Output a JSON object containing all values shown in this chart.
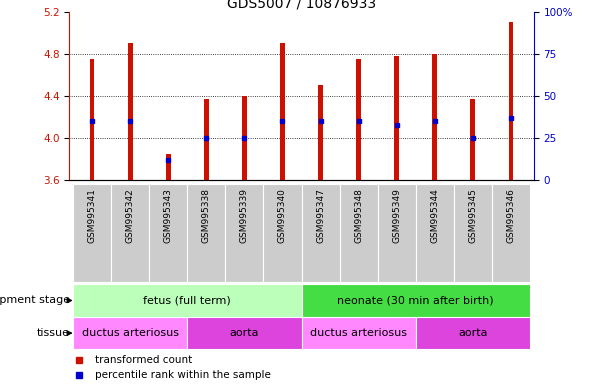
{
  "title": "GDS5007 / 10876933",
  "samples": [
    "GSM995341",
    "GSM995342",
    "GSM995343",
    "GSM995338",
    "GSM995339",
    "GSM995340",
    "GSM995347",
    "GSM995348",
    "GSM995349",
    "GSM995344",
    "GSM995345",
    "GSM995346"
  ],
  "bar_values": [
    4.75,
    4.9,
    3.85,
    4.37,
    4.4,
    4.9,
    4.5,
    4.75,
    4.78,
    4.8,
    4.37,
    5.1
  ],
  "percentile_ranks": [
    35,
    35,
    12,
    25,
    25,
    35,
    35,
    35,
    33,
    35,
    25,
    37
  ],
  "y_min": 3.6,
  "y_max": 5.2,
  "y_ticks_left": [
    3.6,
    4.0,
    4.4,
    4.8,
    5.2
  ],
  "y_ticks_right": [
    0,
    25,
    50,
    75,
    100
  ],
  "grid_yticks": [
    4.0,
    4.4,
    4.8
  ],
  "bar_color": "#cc1100",
  "dot_color": "#0000cc",
  "sample_box_color": "#cccccc",
  "dev_stage_groups": [
    {
      "label": "fetus (full term)",
      "start": 0,
      "end": 5,
      "color": "#bbffbb"
    },
    {
      "label": "neonate (30 min after birth)",
      "start": 6,
      "end": 11,
      "color": "#44dd44"
    }
  ],
  "tissue_groups": [
    {
      "label": "ductus arteriosus",
      "start": 0,
      "end": 2,
      "color": "#ff88ff"
    },
    {
      "label": "aorta",
      "start": 3,
      "end": 5,
      "color": "#dd44dd"
    },
    {
      "label": "ductus arteriosus",
      "start": 6,
      "end": 8,
      "color": "#ff88ff"
    },
    {
      "label": "aorta",
      "start": 9,
      "end": 11,
      "color": "#dd44dd"
    }
  ],
  "legend_items": [
    {
      "label": "transformed count",
      "color": "#cc1100"
    },
    {
      "label": "percentile rank within the sample",
      "color": "#0000cc"
    }
  ],
  "ylabel_left_color": "#cc1100",
  "ylabel_right_color": "#0000cc",
  "title_fontsize": 10,
  "tick_fontsize": 7.5,
  "sample_fontsize": 6.5,
  "anno_fontsize": 8,
  "bar_width": 0.12
}
